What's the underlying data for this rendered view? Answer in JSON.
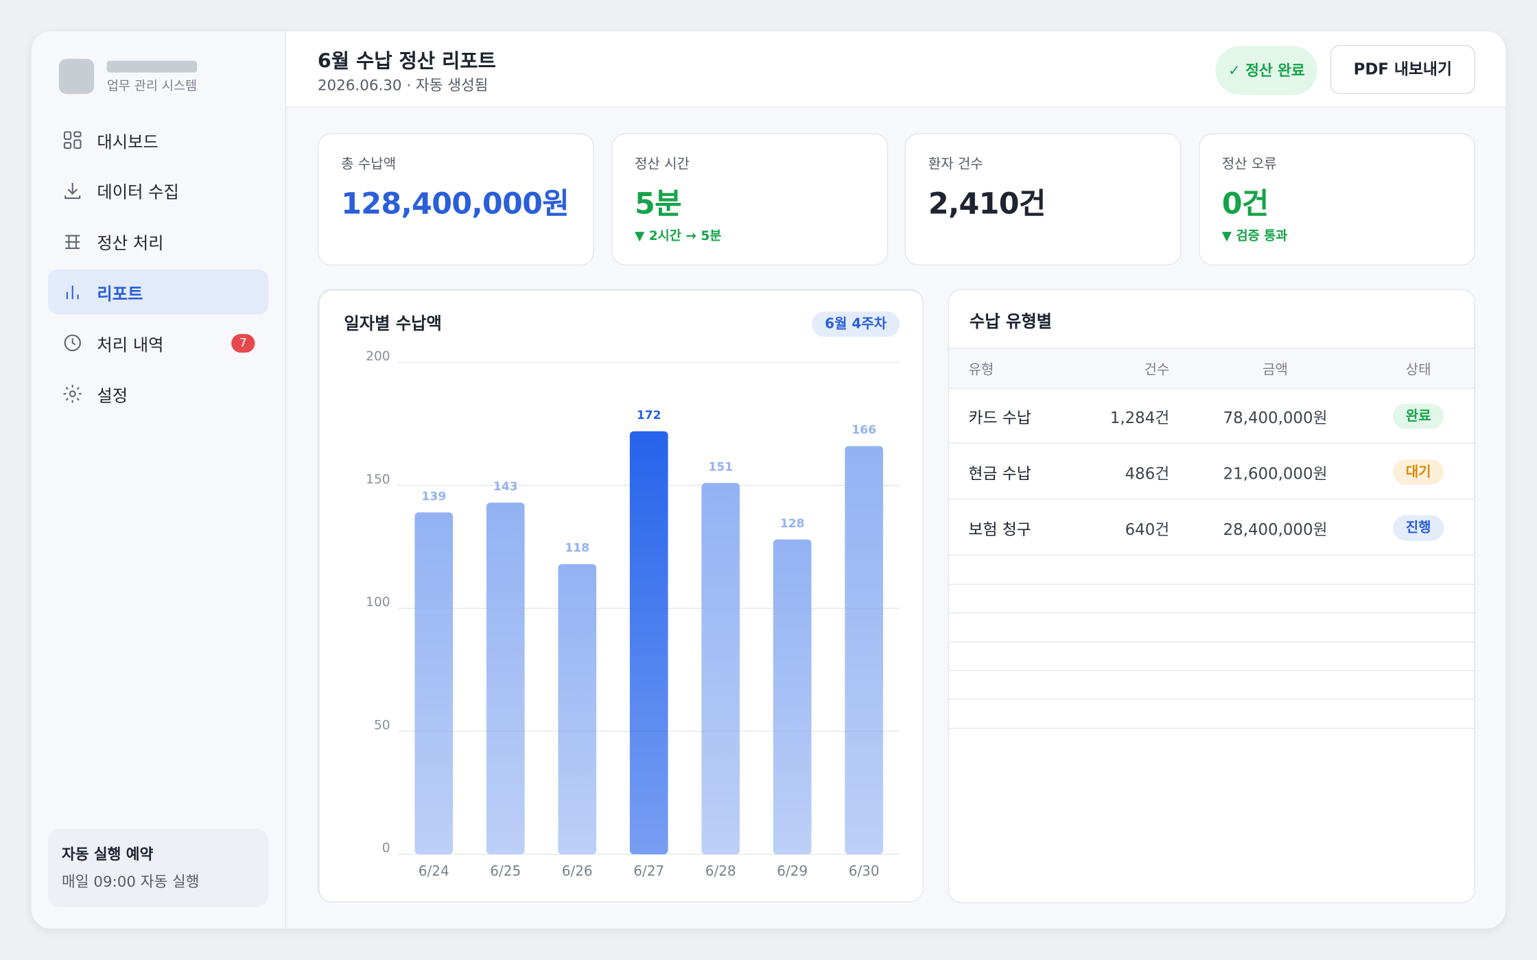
{
  "sidebar": {
    "app_name": "업무 관리 시스템",
    "nav": [
      {
        "label": "대시보드"
      },
      {
        "label": "데이터 수집"
      },
      {
        "label": "정산 처리"
      },
      {
        "label": "리포트"
      },
      {
        "label": "처리 내역",
        "badge": "7"
      },
      {
        "label": "설정"
      }
    ],
    "schedule": {
      "title": "자동 실행 예약",
      "text": "매일 09:00 자동 실행"
    }
  },
  "header": {
    "title": "6월 수납 정산 리포트",
    "subtitle": "2026.06.30 · 자동 생성됨",
    "status": "✓ 정산 완료",
    "button": "PDF 내보내기"
  },
  "kpis": [
    {
      "label": "총 수납액",
      "value": "128,400,000원"
    },
    {
      "label": "정산 시간",
      "value": "5분",
      "note": "▼ 2시간 → 5분"
    },
    {
      "label": "환자 건수",
      "value": "2,410건"
    },
    {
      "label": "정산 오류",
      "value": "0건",
      "note": "▼ 검증 통과"
    }
  ],
  "chart_data": {
    "type": "bar",
    "title": "일자별 수납액",
    "tag": "6월 4주차",
    "categories": [
      "6/24",
      "6/25",
      "6/26",
      "6/27",
      "6/28",
      "6/29",
      "6/30"
    ],
    "values": [
      139,
      143,
      118,
      172,
      151,
      128,
      166
    ],
    "colors": [
      "#93b2f3",
      "#93b2f3",
      "#93b2f3",
      "#2563eb",
      "#93b2f3",
      "#93b2f3",
      "#93b2f3"
    ],
    "ylim": [
      0,
      200
    ],
    "yticks": [
      0,
      50,
      100,
      150,
      200
    ],
    "grid": true
  },
  "table": {
    "title": "수납 유형별",
    "columns": [
      "유형",
      "건수",
      "금액",
      "상태"
    ],
    "rows": [
      [
        "카드 수납",
        "1,284건",
        "78,400,000원",
        "완료"
      ],
      [
        "현금 수납",
        "486건",
        "21,600,000원",
        "대기"
      ],
      [
        "보험 청구",
        "640건",
        "28,400,000원",
        "진행"
      ]
    ]
  }
}
